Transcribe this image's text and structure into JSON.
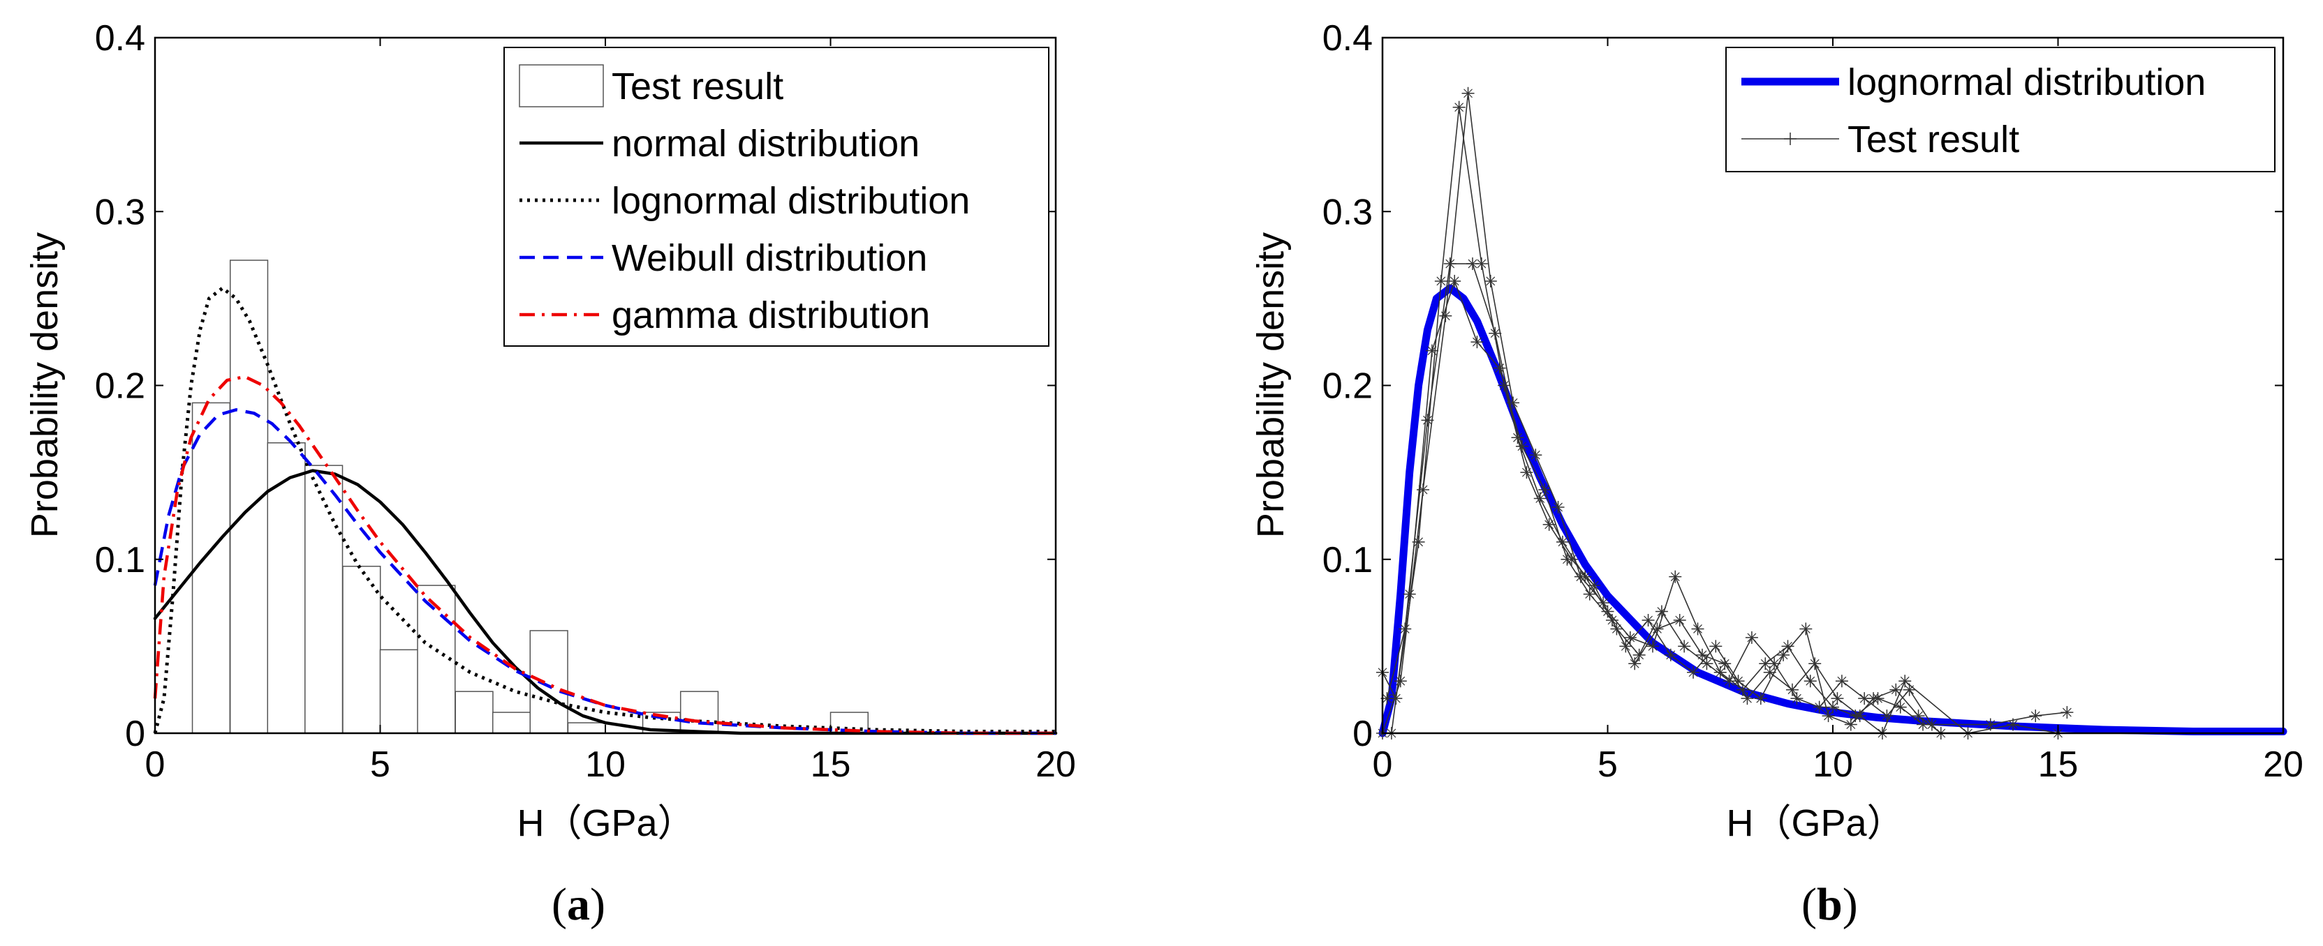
{
  "chart_data": [
    {
      "type": "line",
      "panel": "a",
      "panel_label": "a",
      "xlabel": "H（GPa）",
      "ylabel": "Probability density",
      "xlim": [
        0,
        20
      ],
      "ylim": [
        0,
        0.4
      ],
      "xticks": [
        "0",
        "5",
        "10",
        "20"
      ],
      "xtick_values": [
        0,
        5,
        10,
        20
      ],
      "yticks": [
        "0",
        "0.1",
        "0.2",
        "0.3",
        "0.4"
      ],
      "ytick_values": [
        0,
        0.1,
        0.2,
        0.3,
        0.4
      ],
      "xticks_extra": [
        "15"
      ],
      "xticks_extra_values": [
        15
      ],
      "legend_position": "top-right",
      "histogram": {
        "name": "Test result",
        "bin_width": 0.833,
        "bin_starts": [
          0.83,
          1.67,
          2.5,
          3.33,
          4.17,
          5.0,
          5.83,
          6.67,
          7.5,
          8.33,
          9.17,
          10.0,
          10.83,
          11.67,
          12.5,
          13.33,
          14.17,
          15.0
        ],
        "heights": [
          0.19,
          0.272,
          0.167,
          0.154,
          0.096,
          0.048,
          0.085,
          0.024,
          0.012,
          0.059,
          0.006,
          0.0,
          0.012,
          0.024,
          0.0,
          0.0,
          0.0,
          0.012
        ]
      },
      "series": [
        {
          "name": "normal distribution",
          "color": "#000000",
          "style": "solid",
          "x": [
            0,
            0.5,
            1,
            1.5,
            2,
            2.5,
            3,
            3.5,
            4,
            4.5,
            5,
            5.5,
            6,
            6.5,
            7,
            7.5,
            8,
            8.5,
            9,
            9.5,
            10,
            11,
            12,
            13,
            14,
            15,
            16,
            17,
            18,
            19,
            20
          ],
          "y": [
            0.066,
            0.082,
            0.098,
            0.113,
            0.127,
            0.139,
            0.147,
            0.151,
            0.149,
            0.143,
            0.133,
            0.12,
            0.104,
            0.087,
            0.069,
            0.052,
            0.038,
            0.026,
            0.017,
            0.01,
            0.006,
            0.002,
            0.001,
            0.0,
            0.0,
            0.0,
            0.0,
            0.0,
            0.0,
            0.0,
            0.0
          ]
        },
        {
          "name": "lognormal distribution",
          "color": "#000000",
          "style": "dotted",
          "x": [
            0,
            0.2,
            0.4,
            0.6,
            0.8,
            1.0,
            1.2,
            1.5,
            1.8,
            2.1,
            2.5,
            3,
            3.5,
            4,
            4.5,
            5,
            6,
            7,
            8,
            9,
            10,
            11,
            12,
            14,
            16,
            18,
            20
          ],
          "y": [
            0.0,
            0.02,
            0.08,
            0.15,
            0.2,
            0.232,
            0.25,
            0.256,
            0.25,
            0.237,
            0.212,
            0.178,
            0.147,
            0.12,
            0.097,
            0.079,
            0.052,
            0.035,
            0.024,
            0.017,
            0.012,
            0.009,
            0.007,
            0.004,
            0.002,
            0.001,
            0.001
          ]
        },
        {
          "name": "Weibull distribution",
          "color": "#0000ee",
          "style": "dashed",
          "x": [
            0,
            0.3,
            0.6,
            1.0,
            1.4,
            1.8,
            2.2,
            2.6,
            3,
            3.5,
            4,
            4.5,
            5,
            6,
            7,
            8,
            9,
            10,
            11,
            12,
            14,
            16,
            18,
            20
          ],
          "y": [
            0.085,
            0.125,
            0.152,
            0.172,
            0.183,
            0.186,
            0.184,
            0.178,
            0.168,
            0.153,
            0.137,
            0.12,
            0.104,
            0.076,
            0.053,
            0.036,
            0.024,
            0.016,
            0.01,
            0.006,
            0.003,
            0.001,
            0.0,
            0.0
          ]
        },
        {
          "name": "gamma distribution",
          "color": "#ee0000",
          "style": "dashdot",
          "x": [
            0,
            0.2,
            0.5,
            0.8,
            1.2,
            1.6,
            2.0,
            2.4,
            2.8,
            3.2,
            3.6,
            4,
            4.5,
            5,
            6,
            7,
            8,
            9,
            10,
            11,
            12,
            14,
            16,
            18,
            20
          ],
          "y": [
            0.02,
            0.09,
            0.14,
            0.17,
            0.192,
            0.203,
            0.205,
            0.2,
            0.19,
            0.177,
            0.162,
            0.147,
            0.128,
            0.11,
            0.079,
            0.055,
            0.037,
            0.025,
            0.016,
            0.011,
            0.007,
            0.003,
            0.001,
            0.0,
            0.0
          ]
        }
      ],
      "legend_entries": [
        "Test result",
        "normal distribution",
        "lognormal distribution",
        "Weibull distribution",
        "gamma distribution"
      ]
    },
    {
      "type": "line",
      "panel": "b",
      "panel_label": "b",
      "xlabel": "H（GPa）",
      "ylabel": "Probability density",
      "xlim": [
        0,
        20
      ],
      "ylim": [
        0,
        0.4
      ],
      "xticks": [
        "0",
        "5",
        "10",
        "15",
        "20"
      ],
      "xtick_values": [
        0,
        5,
        10,
        15,
        20
      ],
      "yticks": [
        "0",
        "0.1",
        "0.2",
        "0.3",
        "0.4"
      ],
      "ytick_values": [
        0,
        0.1,
        0.2,
        0.3,
        0.4
      ],
      "legend_position": "top-right",
      "series": [
        {
          "name": "lognormal distribution",
          "color": "#0000ee",
          "style": "solid-thick",
          "x": [
            0,
            0.2,
            0.4,
            0.6,
            0.8,
            1.0,
            1.2,
            1.5,
            1.8,
            2.1,
            2.5,
            3,
            3.5,
            4,
            4.5,
            5,
            6,
            7,
            8,
            9,
            10,
            11,
            12,
            14,
            16,
            18,
            20
          ],
          "y": [
            0.0,
            0.02,
            0.08,
            0.15,
            0.2,
            0.232,
            0.25,
            0.256,
            0.25,
            0.237,
            0.212,
            0.178,
            0.147,
            0.12,
            0.097,
            0.079,
            0.052,
            0.035,
            0.024,
            0.017,
            0.012,
            0.009,
            0.007,
            0.004,
            0.002,
            0.001,
            0.001
          ]
        },
        {
          "name": "Test result",
          "color": "#333333",
          "style": "thin-markers",
          "runs": [
            {
              "x": [
                0,
                0.3,
                0.8,
                1.3,
                1.7,
                2.2,
                2.7,
                3.2,
                3.7,
                4.2,
                4.7,
                5.2,
                5.7,
                6.2,
                6.7,
                7.2,
                7.7,
                8.2,
                8.7,
                9.2,
                9.7,
                10.2,
                10.7,
                11.2,
                11.7,
                12.2
              ],
              "y": [
                0.035,
                0.02,
                0.11,
                0.26,
                0.36,
                0.27,
                0.2,
                0.15,
                0.12,
                0.1,
                0.085,
                0.06,
                0.045,
                0.07,
                0.05,
                0.04,
                0.03,
                0.055,
                0.04,
                0.02,
                0.015,
                0.03,
                0.02,
                0.01,
                0.025,
                0.005
              ]
            },
            {
              "x": [
                0,
                0.4,
                0.9,
                1.4,
                1.9,
                2.4,
                2.9,
                3.4,
                3.9,
                4.4,
                4.9,
                5.4,
                5.9,
                6.4,
                6.9,
                7.4,
                7.9,
                8.4,
                8.9,
                9.4,
                9.9,
                10.4,
                10.9,
                11.4,
                11.9,
                12.4
              ],
              "y": [
                0.0,
                0.03,
                0.14,
                0.24,
                0.368,
                0.26,
                0.19,
                0.16,
                0.13,
                0.09,
                0.075,
                0.05,
                0.065,
                0.045,
                0.035,
                0.05,
                0.03,
                0.02,
                0.045,
                0.06,
                0.01,
                0.005,
                0.02,
                0.025,
                0.01,
                0.0
              ]
            },
            {
              "x": [
                0.1,
                0.5,
                1.0,
                1.5,
                2.0,
                2.5,
                3.0,
                3.5,
                4.0,
                4.5,
                5.0,
                5.5,
                6.0,
                6.5,
                7.0,
                7.5,
                8.0,
                8.5,
                9.0,
                9.5,
                10.0,
                10.5,
                11.0,
                11.5,
                12.0,
                13.5,
                14.5,
                15.2
              ],
              "y": [
                0.02,
                0.06,
                0.18,
                0.27,
                0.27,
                0.23,
                0.17,
                0.135,
                0.11,
                0.09,
                0.07,
                0.055,
                0.05,
                0.09,
                0.06,
                0.035,
                0.025,
                0.04,
                0.05,
                0.03,
                0.015,
                0.01,
                0.02,
                0.015,
                0.005,
                0.005,
                0.01,
                0.012
              ]
            },
            {
              "x": [
                0.2,
                0.6,
                1.1,
                1.6,
                2.1,
                2.6,
                3.1,
                3.6,
                4.1,
                4.6,
                5.1,
                5.6,
                6.1,
                6.6,
                7.1,
                7.6,
                8.1,
                8.6,
                9.1,
                9.6,
                10.1,
                10.6,
                11.1,
                11.6,
                13.0,
                14.0,
                15.0
              ],
              "y": [
                0.0,
                0.08,
                0.22,
                0.26,
                0.225,
                0.21,
                0.165,
                0.14,
                0.1,
                0.08,
                0.065,
                0.04,
                0.06,
                0.065,
                0.045,
                0.04,
                0.02,
                0.035,
                0.025,
                0.04,
                0.02,
                0.01,
                0.0,
                0.03,
                0.0,
                0.005,
                0.0
              ]
            }
          ]
        }
      ],
      "legend_entries": [
        "lognormal distribution",
        "Test result"
      ]
    }
  ]
}
